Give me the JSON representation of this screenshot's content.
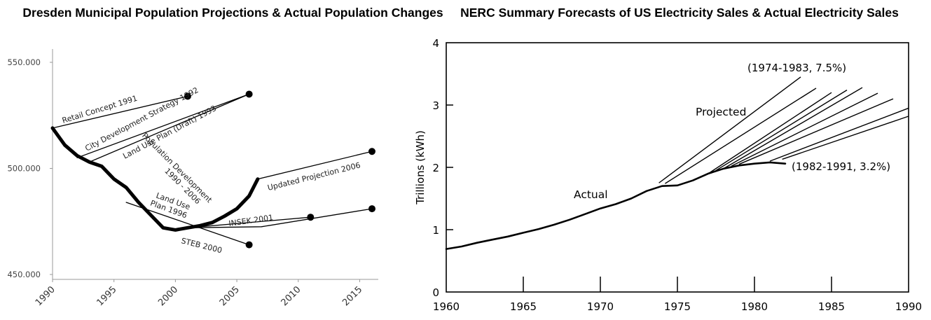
{
  "titles": {
    "left": "Dresden Municipal Population Projections & Actual Population Changes",
    "right": "NERC Summary Forecasts of US Electricity Sales & Actual Electricity Sales"
  },
  "chart_data": [
    {
      "type": "line",
      "title": "Dresden Municipal Population Projections & Actual Population Changes",
      "xlabel": "",
      "ylabel": "",
      "xlim": [
        1990,
        2016
      ],
      "ylim": [
        450000,
        550000
      ],
      "x_ticks": [
        "1990",
        "1995",
        "2000",
        "2005",
        "2010",
        "2015"
      ],
      "y_ticks": [
        "450.000",
        "500.000",
        "550.000"
      ],
      "grid": false,
      "series": [
        {
          "name": "Population Development 1990 - 2006",
          "label_lines": [
            "Population Development",
            "1990 - 2006"
          ],
          "x": [
            1990,
            1991,
            1992,
            1993,
            1994,
            1995,
            1996,
            1997,
            1998,
            1999,
            2000,
            2001,
            2002,
            2003,
            2004,
            2005,
            2006,
            2006.7
          ],
          "y": [
            519000,
            511000,
            506000,
            503000,
            501000,
            495000,
            491000,
            484000,
            478000,
            472000,
            471000,
            472000,
            473000,
            474500,
            477500,
            481000,
            487000,
            495000
          ]
        },
        {
          "name": "Retail Concept 1991",
          "label_lines": [
            "Retail Concept 1991"
          ],
          "x": [
            1990,
            2001
          ],
          "y": [
            519000,
            534000
          ],
          "marker": "end"
        },
        {
          "name": "City Development Strategy 1992",
          "label_lines": [
            "City Development Strategy 1992"
          ],
          "x": [
            1992,
            2006
          ],
          "y": [
            505000,
            535000
          ],
          "marker": "end"
        },
        {
          "name": "Land Use Plan (Draft) 1993",
          "label_lines": [
            "Land Use Plan (Draft) 1993"
          ],
          "x": [
            1993,
            2006
          ],
          "y": [
            503000,
            535000
          ],
          "marker": "none"
        },
        {
          "name": "Land Use Plan 1996",
          "label_lines": [
            "Land Use",
            "Plan 1996"
          ],
          "x": [
            1996,
            2006
          ],
          "y": [
            484000,
            464000
          ],
          "marker": "end"
        },
        {
          "name": "STEB 2000",
          "label_lines": [
            "STEB 2000"
          ],
          "x": [
            2000,
            2011
          ],
          "y": [
            471500,
            477000
          ],
          "marker": "end"
        },
        {
          "name": "INSEK 2001",
          "label_lines": [
            "INSEK 2001"
          ],
          "x": [
            2001,
            2007,
            2016
          ],
          "y": [
            472000,
            472500,
            481000
          ],
          "marker": "end"
        },
        {
          "name": "Updated Projection 2006",
          "label_lines": [
            "Updated Projection 2006"
          ],
          "x": [
            2006.7,
            2016
          ],
          "y": [
            495000,
            508000
          ],
          "marker": "end"
        }
      ]
    },
    {
      "type": "line",
      "title": "NERC Summary Forecasts of US Electricity Sales & Actual Electricity Sales",
      "xlabel": "",
      "ylabel": "Trillions (kWh)",
      "xlim": [
        1960,
        1990
      ],
      "ylim": [
        0,
        4
      ],
      "x_ticks": [
        "1960",
        "1965",
        "1970",
        "1975",
        "1980",
        "1985",
        "1990"
      ],
      "y_ticks": [
        "0",
        "1",
        "2",
        "3",
        "4"
      ],
      "grid": false,
      "series": [
        {
          "name": "Actual",
          "x": [
            1960,
            1961,
            1962,
            1963,
            1964,
            1965,
            1966,
            1967,
            1968,
            1969,
            1970,
            1971,
            1972,
            1973,
            1974,
            1975,
            1976,
            1977,
            1978,
            1979,
            1980,
            1981,
            1982
          ],
          "y": [
            0.69,
            0.73,
            0.79,
            0.84,
            0.89,
            0.95,
            1.01,
            1.08,
            1.16,
            1.25,
            1.34,
            1.41,
            1.5,
            1.62,
            1.7,
            1.71,
            1.79,
            1.9,
            1.98,
            2.03,
            2.06,
            2.08,
            2.06
          ]
        }
      ],
      "projections": [
        {
          "label": "(1974-1983, 7.5%)",
          "x": [
            1973.8,
            1983
          ],
          "y": [
            1.75,
            3.45
          ]
        },
        {
          "x": [
            1974.2,
            1984
          ],
          "y": [
            1.74,
            3.27
          ]
        },
        {
          "x": [
            1977.0,
            1985
          ],
          "y": [
            1.9,
            3.2
          ]
        },
        {
          "x": [
            1977.5,
            1986
          ],
          "y": [
            1.95,
            3.24
          ]
        },
        {
          "x": [
            1978.0,
            1987
          ],
          "y": [
            1.98,
            3.28
          ]
        },
        {
          "x": [
            1978.5,
            1988
          ],
          "y": [
            2.02,
            3.19
          ]
        },
        {
          "x": [
            1979.0,
            1989
          ],
          "y": [
            2.05,
            3.1
          ]
        },
        {
          "x": [
            1981.0,
            1990
          ],
          "y": [
            2.1,
            2.95
          ]
        },
        {
          "label": "(1982-1991, 3.2%)",
          "x": [
            1981.8,
            1990
          ],
          "y": [
            2.13,
            2.82
          ]
        }
      ],
      "annotations": {
        "projected": "Projected",
        "actual": "Actual"
      }
    }
  ]
}
